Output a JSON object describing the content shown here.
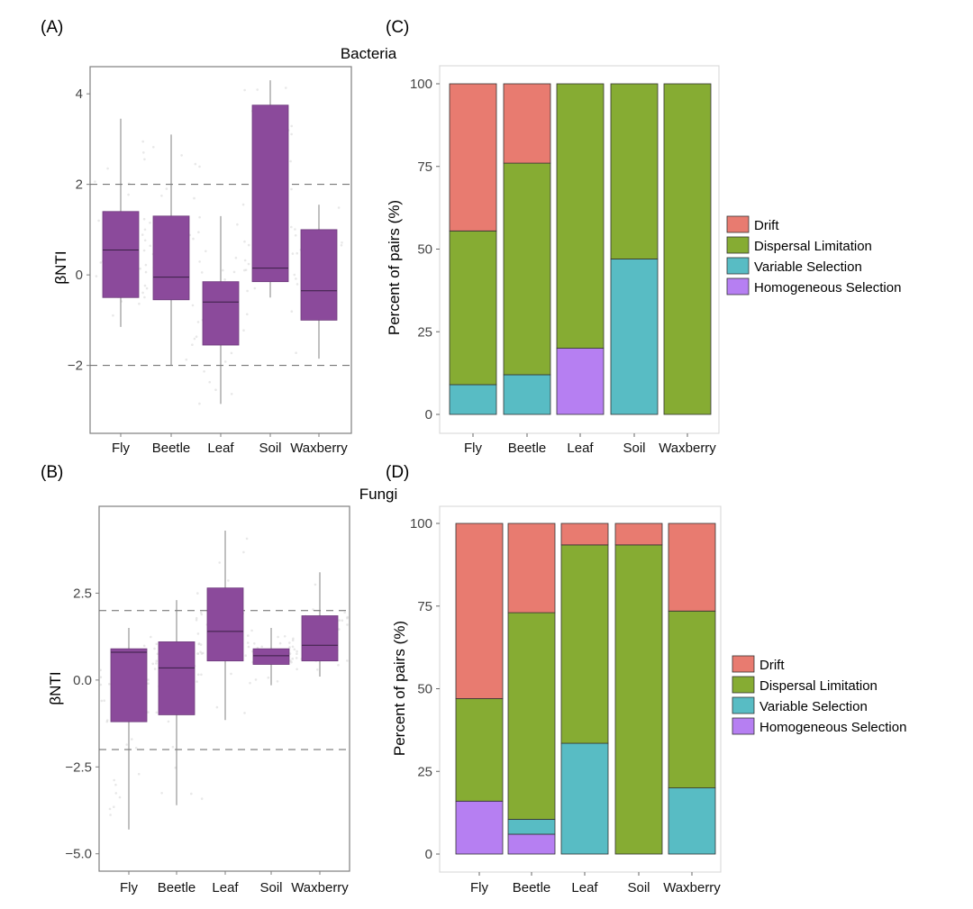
{
  "chart_data": [
    {
      "panel": "(A)",
      "type": "box",
      "title": "Bacteria",
      "xlabel": "",
      "ylabel": "βNTI",
      "ylim": [
        -3.5,
        4.6
      ],
      "yticks": [
        4,
        2,
        0,
        -2
      ],
      "ytick_labels": [
        "4",
        "2",
        "0",
        "−2"
      ],
      "reference_lines": [
        2,
        -2
      ],
      "box_color": "#8b4a9b",
      "categories": [
        "Fly",
        "Beetle",
        "Leaf",
        "Soil",
        "Waxberry"
      ],
      "boxes": [
        {
          "min": -1.15,
          "q1": -0.5,
          "median": 0.55,
          "q3": 1.4,
          "max": 3.45
        },
        {
          "min": -2.0,
          "q1": -0.55,
          "median": -0.05,
          "q3": 1.3,
          "max": 3.1
        },
        {
          "min": -2.85,
          "q1": -1.55,
          "median": -0.6,
          "q3": -0.15,
          "max": 1.3
        },
        {
          "min": -0.5,
          "q1": -0.15,
          "median": 0.15,
          "q3": 3.75,
          "max": 4.3
        },
        {
          "min": -1.85,
          "q1": -1.0,
          "median": -0.35,
          "q3": 1.0,
          "max": 1.55
        }
      ]
    },
    {
      "panel": "(B)",
      "type": "box",
      "title": "Fungi",
      "xlabel": "",
      "ylabel": "βNTI",
      "ylim": [
        -5.5,
        5.0
      ],
      "yticks": [
        2.5,
        0.0,
        -2.5,
        -5.0
      ],
      "ytick_labels": [
        "2.5",
        "0.0",
        "−2.5",
        "−5.0"
      ],
      "reference_lines": [
        2,
        -2
      ],
      "box_color": "#8b4a9b",
      "categories": [
        "Fly",
        "Beetle",
        "Leaf",
        "Soil",
        "Waxberry"
      ],
      "boxes": [
        {
          "min": -4.3,
          "q1": -1.2,
          "median": 0.8,
          "q3": 0.9,
          "max": 1.5
        },
        {
          "min": -3.6,
          "q1": -1.0,
          "median": 0.35,
          "q3": 1.1,
          "max": 2.3
        },
        {
          "min": -1.15,
          "q1": 0.55,
          "median": 1.4,
          "q3": 2.65,
          "max": 4.3
        },
        {
          "min": -0.15,
          "q1": 0.45,
          "median": 0.7,
          "q3": 0.9,
          "max": 1.5
        },
        {
          "min": 0.1,
          "q1": 0.55,
          "median": 1.0,
          "q3": 1.85,
          "max": 3.1
        }
      ]
    },
    {
      "panel": "(C)",
      "type": "bar",
      "stacked": true,
      "title": "",
      "xlabel": "",
      "ylabel": "Percent of pairs (%)",
      "ylim": [
        0,
        100
      ],
      "yticks": [
        0,
        25,
        50,
        75,
        100
      ],
      "categories": [
        "Fly",
        "Beetle",
        "Leaf",
        "Soil",
        "Waxberry"
      ],
      "legend_position": "right",
      "series": [
        {
          "name": "Homogeneous Selection",
          "color": "#b67ff2",
          "values": [
            0,
            0,
            20,
            0,
            0
          ]
        },
        {
          "name": "Variable Selection",
          "color": "#58bcc4",
          "values": [
            9,
            12,
            0,
            47,
            0
          ]
        },
        {
          "name": "Dispersal Limitation",
          "color": "#86ac33",
          "values": [
            46.5,
            64,
            80,
            53,
            100
          ]
        },
        {
          "name": "Drift",
          "color": "#e87b70",
          "values": [
            44.5,
            24,
            0,
            0,
            0
          ]
        }
      ]
    },
    {
      "panel": "(D)",
      "type": "bar",
      "stacked": true,
      "title": "",
      "xlabel": "",
      "ylabel": "Percent of pairs (%)",
      "ylim": [
        0,
        100
      ],
      "yticks": [
        0,
        25,
        50,
        75,
        100
      ],
      "categories": [
        "Fly",
        "Beetle",
        "Leaf",
        "Soil",
        "Waxberry"
      ],
      "legend_position": "right",
      "series": [
        {
          "name": "Homogeneous Selection",
          "color": "#b67ff2",
          "values": [
            16,
            6,
            0,
            0,
            0
          ]
        },
        {
          "name": "Variable Selection",
          "color": "#58bcc4",
          "values": [
            0,
            4.5,
            33.5,
            0,
            20
          ]
        },
        {
          "name": "Dispersal Limitation",
          "color": "#86ac33",
          "values": [
            31,
            62.5,
            60,
            93.5,
            53.5
          ]
        },
        {
          "name": "Drift",
          "color": "#e87b70",
          "values": [
            53,
            27,
            6.5,
            6.5,
            26.5
          ]
        }
      ]
    }
  ]
}
